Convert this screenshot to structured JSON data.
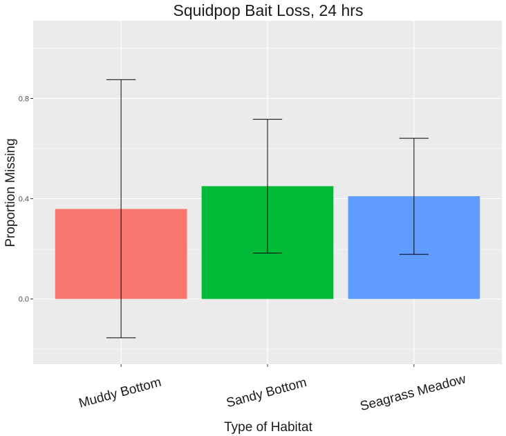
{
  "chart_data": {
    "type": "bar",
    "title": "Squidpop Bait Loss, 24 hrs",
    "xlabel": "Type of Habitat",
    "ylabel": "Proportion Missing",
    "categories": [
      "Muddy Bottom",
      "Sandy Bottom",
      "Seagrass Meadow"
    ],
    "values": [
      0.359,
      0.45,
      0.41
    ],
    "error_bars": [
      {
        "lower": -0.155,
        "upper": 0.875
      },
      {
        "lower": 0.183,
        "upper": 0.717
      },
      {
        "lower": 0.178,
        "upper": 0.641
      }
    ],
    "colors": [
      "#F8766D",
      "#00BA38",
      "#619CFF"
    ],
    "ylim": [
      -0.26,
      1.11
    ],
    "yticks": [
      0.0,
      0.4,
      0.8
    ],
    "ytick_labels": [
      "0.0",
      "0.4",
      "0.8"
    ],
    "panel_background": "#EBEBEB",
    "grid": true,
    "legend": "none"
  }
}
